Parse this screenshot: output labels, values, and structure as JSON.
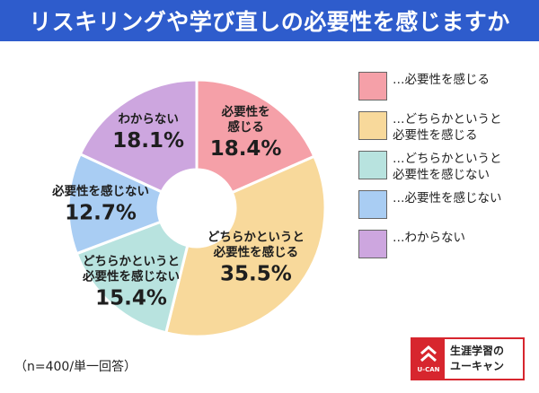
{
  "header": {
    "title": "リスキリングや学び直しの必要性を感じますか"
  },
  "chart_data": {
    "type": "pie",
    "categories": [
      "必要性を感じる",
      "どちらかというと必要性を感じる",
      "どちらかというと必要性を感じない",
      "必要性を感じない",
      "わからない"
    ],
    "values": [
      18.4,
      35.5,
      15.4,
      12.7,
      18.1
    ],
    "value_labels": [
      "18.4%",
      "35.5%",
      "15.4%",
      "12.7%",
      "18.1%"
    ],
    "slice_labels": [
      [
        "必要性を",
        "感じる"
      ],
      [
        "どちらかというと",
        "必要性を感じる"
      ],
      [
        "どちらかというと",
        "必要性を感じない"
      ],
      [
        "必要性を感じない"
      ],
      [
        "わからない"
      ]
    ],
    "colors": [
      "#f5a0a8",
      "#f8d99b",
      "#b8e3df",
      "#a9cdf3",
      "#cda6df"
    ],
    "legend": {
      "placement": "right",
      "entries": [
        "…必要性を感じる",
        "…どちらかというと\n必要性を感じる",
        "…どちらかというと\n必要性を感じない",
        "…必要性を感じない",
        "…わからない"
      ]
    }
  },
  "footer": {
    "note": "（n=400/単一回答）"
  },
  "logo": {
    "brand": "U-CAN",
    "line1": "生涯学習の",
    "line2": "ユーキャン"
  }
}
